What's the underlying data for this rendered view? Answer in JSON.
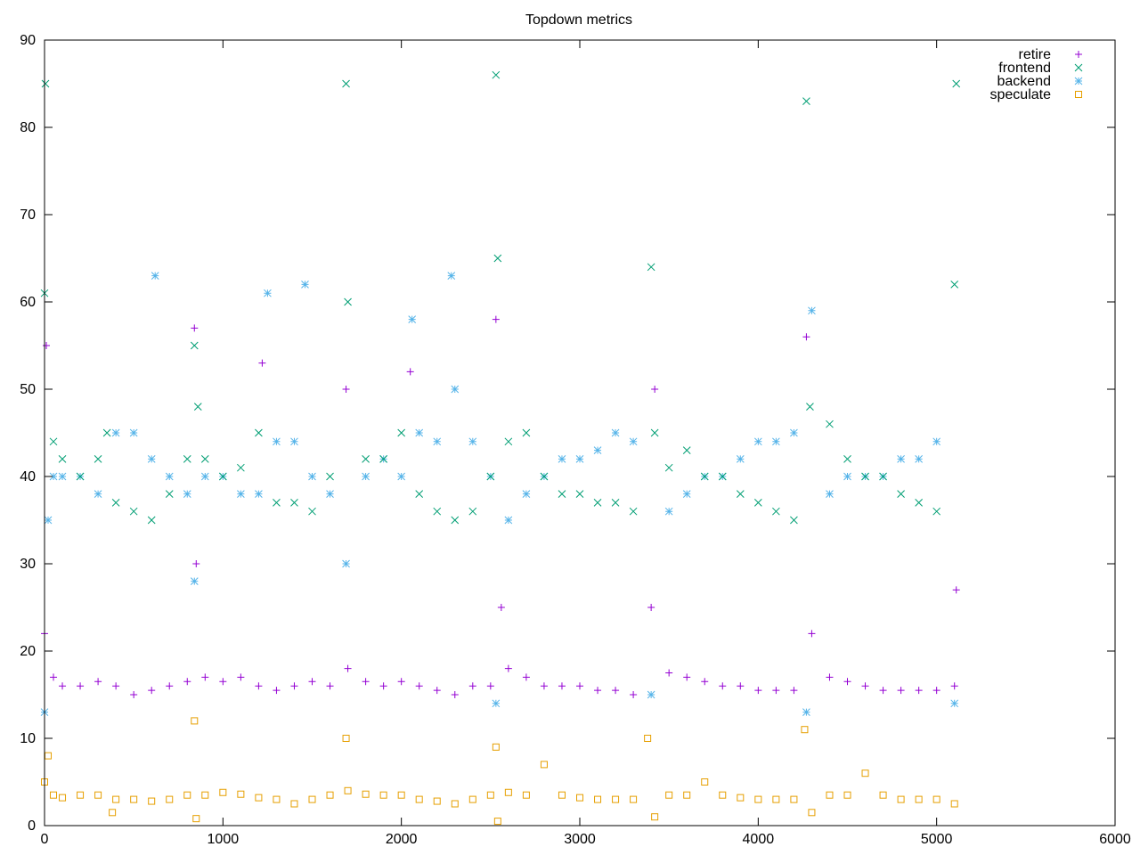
{
  "chart_data": {
    "type": "scatter",
    "title": "Topdown metrics",
    "xlabel": "",
    "ylabel": "",
    "xlim": [
      0,
      6000
    ],
    "ylim": [
      0,
      90
    ],
    "xticks": [
      0,
      1000,
      2000,
      3000,
      4000,
      5000,
      6000
    ],
    "yticks": [
      0,
      10,
      20,
      30,
      40,
      50,
      60,
      70,
      80,
      90
    ],
    "grid": false,
    "legend_placement": "top-right",
    "series": [
      {
        "name": "retire",
        "marker": "plus",
        "color": "#9400d3",
        "points": [
          [
            0,
            22
          ],
          [
            10,
            55
          ],
          [
            50,
            17
          ],
          [
            100,
            16
          ],
          [
            200,
            16
          ],
          [
            300,
            16.5
          ],
          [
            400,
            16
          ],
          [
            500,
            15
          ],
          [
            600,
            15.5
          ],
          [
            700,
            16
          ],
          [
            800,
            16.5
          ],
          [
            840,
            57
          ],
          [
            850,
            30
          ],
          [
            900,
            17
          ],
          [
            1000,
            16.5
          ],
          [
            1100,
            17
          ],
          [
            1200,
            16
          ],
          [
            1220,
            53
          ],
          [
            1300,
            15.5
          ],
          [
            1400,
            16
          ],
          [
            1500,
            16.5
          ],
          [
            1600,
            16
          ],
          [
            1690,
            50
          ],
          [
            1700,
            18
          ],
          [
            1800,
            16.5
          ],
          [
            1900,
            16
          ],
          [
            2000,
            16.5
          ],
          [
            2050,
            52
          ],
          [
            2100,
            16
          ],
          [
            2200,
            15.5
          ],
          [
            2300,
            15
          ],
          [
            2400,
            16
          ],
          [
            2500,
            16
          ],
          [
            2530,
            58
          ],
          [
            2560,
            25
          ],
          [
            2600,
            18
          ],
          [
            2700,
            17
          ],
          [
            2800,
            16
          ],
          [
            2900,
            16
          ],
          [
            3000,
            16
          ],
          [
            3100,
            15.5
          ],
          [
            3200,
            15.5
          ],
          [
            3300,
            15
          ],
          [
            3400,
            25
          ],
          [
            3420,
            50
          ],
          [
            3500,
            17.5
          ],
          [
            3600,
            17
          ],
          [
            3700,
            16.5
          ],
          [
            3800,
            16
          ],
          [
            3900,
            16
          ],
          [
            4000,
            15.5
          ],
          [
            4100,
            15.5
          ],
          [
            4200,
            15.5
          ],
          [
            4270,
            56
          ],
          [
            4300,
            22
          ],
          [
            4400,
            17
          ],
          [
            4500,
            16.5
          ],
          [
            4600,
            16
          ],
          [
            4700,
            15.5
          ],
          [
            4800,
            15.5
          ],
          [
            4900,
            15.5
          ],
          [
            5000,
            15.5
          ],
          [
            5100,
            16
          ],
          [
            5110,
            27
          ]
        ]
      },
      {
        "name": "frontend",
        "marker": "cross",
        "color": "#009e73",
        "points": [
          [
            0,
            61
          ],
          [
            5,
            85
          ],
          [
            50,
            44
          ],
          [
            100,
            42
          ],
          [
            200,
            40
          ],
          [
            300,
            42
          ],
          [
            350,
            45
          ],
          [
            400,
            37
          ],
          [
            500,
            36
          ],
          [
            600,
            35
          ],
          [
            700,
            38
          ],
          [
            800,
            42
          ],
          [
            840,
            55
          ],
          [
            860,
            48
          ],
          [
            900,
            42
          ],
          [
            1000,
            40
          ],
          [
            1100,
            41
          ],
          [
            1200,
            45
          ],
          [
            1300,
            37
          ],
          [
            1400,
            37
          ],
          [
            1500,
            36
          ],
          [
            1600,
            40
          ],
          [
            1690,
            85
          ],
          [
            1700,
            60
          ],
          [
            1800,
            42
          ],
          [
            1900,
            42
          ],
          [
            2000,
            45
          ],
          [
            2100,
            38
          ],
          [
            2200,
            36
          ],
          [
            2300,
            35
          ],
          [
            2400,
            36
          ],
          [
            2500,
            40
          ],
          [
            2530,
            86
          ],
          [
            2540,
            65
          ],
          [
            2600,
            44
          ],
          [
            2700,
            45
          ],
          [
            2800,
            40
          ],
          [
            2900,
            38
          ],
          [
            3000,
            38
          ],
          [
            3100,
            37
          ],
          [
            3200,
            37
          ],
          [
            3300,
            36
          ],
          [
            3400,
            64
          ],
          [
            3420,
            45
          ],
          [
            3500,
            41
          ],
          [
            3600,
            43
          ],
          [
            3700,
            40
          ],
          [
            3800,
            40
          ],
          [
            3900,
            38
          ],
          [
            4000,
            37
          ],
          [
            4100,
            36
          ],
          [
            4200,
            35
          ],
          [
            4270,
            83
          ],
          [
            4290,
            48
          ],
          [
            4400,
            46
          ],
          [
            4500,
            42
          ],
          [
            4600,
            40
          ],
          [
            4700,
            40
          ],
          [
            4800,
            38
          ],
          [
            4900,
            37
          ],
          [
            5000,
            36
          ],
          [
            5100,
            62
          ],
          [
            5110,
            85
          ]
        ]
      },
      {
        "name": "backend",
        "marker": "star",
        "color": "#56b4e9",
        "points": [
          [
            0,
            13
          ],
          [
            20,
            35
          ],
          [
            50,
            40
          ],
          [
            100,
            40
          ],
          [
            200,
            40
          ],
          [
            300,
            38
          ],
          [
            400,
            45
          ],
          [
            500,
            45
          ],
          [
            600,
            42
          ],
          [
            620,
            63
          ],
          [
            700,
            40
          ],
          [
            800,
            38
          ],
          [
            840,
            28
          ],
          [
            900,
            40
          ],
          [
            1000,
            40
          ],
          [
            1100,
            38
          ],
          [
            1200,
            38
          ],
          [
            1250,
            61
          ],
          [
            1300,
            44
          ],
          [
            1400,
            44
          ],
          [
            1460,
            62
          ],
          [
            1500,
            40
          ],
          [
            1600,
            38
          ],
          [
            1690,
            30
          ],
          [
            1800,
            40
          ],
          [
            1900,
            42
          ],
          [
            2000,
            40
          ],
          [
            2060,
            58
          ],
          [
            2100,
            45
          ],
          [
            2200,
            44
          ],
          [
            2280,
            63
          ],
          [
            2300,
            50
          ],
          [
            2400,
            44
          ],
          [
            2500,
            40
          ],
          [
            2530,
            14
          ],
          [
            2600,
            35
          ],
          [
            2700,
            38
          ],
          [
            2800,
            40
          ],
          [
            2900,
            42
          ],
          [
            3000,
            42
          ],
          [
            3100,
            43
          ],
          [
            3200,
            45
          ],
          [
            3300,
            44
          ],
          [
            3400,
            15
          ],
          [
            3500,
            36
          ],
          [
            3600,
            38
          ],
          [
            3700,
            40
          ],
          [
            3800,
            40
          ],
          [
            3900,
            42
          ],
          [
            4000,
            44
          ],
          [
            4100,
            44
          ],
          [
            4200,
            45
          ],
          [
            4270,
            13
          ],
          [
            4300,
            59
          ],
          [
            4400,
            38
          ],
          [
            4500,
            40
          ],
          [
            4600,
            40
          ],
          [
            4700,
            40
          ],
          [
            4800,
            42
          ],
          [
            4900,
            42
          ],
          [
            5000,
            44
          ],
          [
            5100,
            14
          ]
        ]
      },
      {
        "name": "speculate",
        "marker": "square",
        "color": "#e69f00",
        "points": [
          [
            0,
            5
          ],
          [
            20,
            8
          ],
          [
            50,
            3.5
          ],
          [
            100,
            3.2
          ],
          [
            200,
            3.5
          ],
          [
            300,
            3.5
          ],
          [
            380,
            1.5
          ],
          [
            400,
            3
          ],
          [
            500,
            3
          ],
          [
            600,
            2.8
          ],
          [
            700,
            3
          ],
          [
            800,
            3.5
          ],
          [
            840,
            12
          ],
          [
            850,
            0.8
          ],
          [
            900,
            3.5
          ],
          [
            1000,
            3.8
          ],
          [
            1100,
            3.6
          ],
          [
            1200,
            3.2
          ],
          [
            1300,
            3
          ],
          [
            1400,
            2.5
          ],
          [
            1500,
            3
          ],
          [
            1600,
            3.5
          ],
          [
            1690,
            10
          ],
          [
            1700,
            4
          ],
          [
            1800,
            3.6
          ],
          [
            1900,
            3.5
          ],
          [
            2000,
            3.5
          ],
          [
            2100,
            3
          ],
          [
            2200,
            2.8
          ],
          [
            2300,
            2.5
          ],
          [
            2400,
            3
          ],
          [
            2500,
            3.5
          ],
          [
            2530,
            9
          ],
          [
            2540,
            0.5
          ],
          [
            2600,
            3.8
          ],
          [
            2700,
            3.5
          ],
          [
            2800,
            7
          ],
          [
            2900,
            3.5
          ],
          [
            3000,
            3.2
          ],
          [
            3100,
            3
          ],
          [
            3200,
            3
          ],
          [
            3300,
            3
          ],
          [
            3380,
            10
          ],
          [
            3420,
            1
          ],
          [
            3500,
            3.5
          ],
          [
            3600,
            3.5
          ],
          [
            3700,
            5
          ],
          [
            3800,
            3.5
          ],
          [
            3900,
            3.2
          ],
          [
            4000,
            3
          ],
          [
            4100,
            3
          ],
          [
            4200,
            3
          ],
          [
            4260,
            11
          ],
          [
            4300,
            1.5
          ],
          [
            4400,
            3.5
          ],
          [
            4500,
            3.5
          ],
          [
            4600,
            6
          ],
          [
            4700,
            3.5
          ],
          [
            4800,
            3
          ],
          [
            4900,
            3
          ],
          [
            5000,
            3
          ],
          [
            5100,
            2.5
          ]
        ]
      }
    ]
  }
}
